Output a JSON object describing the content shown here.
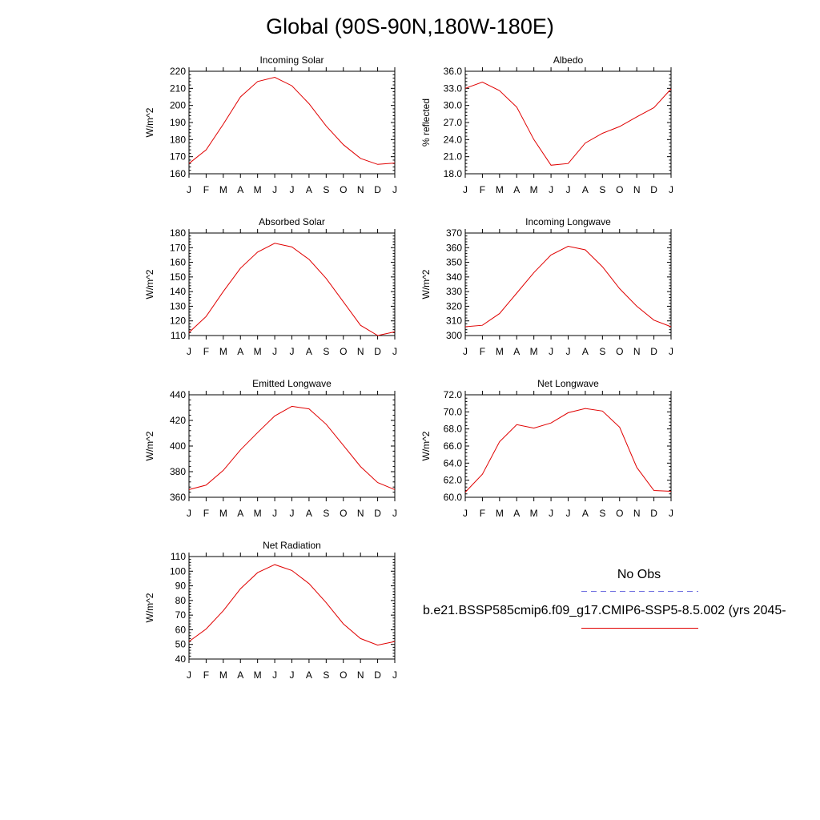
{
  "title": "Global (90S-90N,180W-180E)",
  "legend": {
    "obs_label": "No Obs",
    "obs_color": "#6f6fe0",
    "model_label": "b.e21.BSSP585cmip6.f09_g17.CMIP6-SSP5-8.5.002 (yrs 2045-",
    "model_color": "#e00000"
  },
  "chart_data": [
    {
      "type": "line",
      "title": "Incoming Solar",
      "ylabel": "W/m^2",
      "categories": [
        "J",
        "F",
        "M",
        "A",
        "M",
        "J",
        "J",
        "A",
        "S",
        "O",
        "N",
        "D",
        "J"
      ],
      "ylim": [
        160,
        220
      ],
      "yticks": [
        "160",
        "170",
        "180",
        "190",
        "200",
        "210",
        "220"
      ],
      "series": [
        {
          "values": [
            166,
            174,
            189,
            205,
            214,
            216.5,
            211.5,
            201,
            188,
            177,
            169,
            165.5,
            166.3
          ]
        }
      ]
    },
    {
      "type": "line",
      "title": "Albedo",
      "ylabel": "% reflected",
      "categories": [
        "J",
        "F",
        "M",
        "A",
        "M",
        "J",
        "J",
        "A",
        "S",
        "O",
        "N",
        "D",
        "J"
      ],
      "ylim": [
        18,
        36
      ],
      "yticks": [
        "18.0",
        "21.0",
        "24.0",
        "27.0",
        "30.0",
        "33.0",
        "36.0"
      ],
      "series": [
        {
          "values": [
            33.0,
            34.1,
            32.6,
            29.7,
            24.0,
            19.5,
            19.8,
            23.4,
            25.1,
            26.3,
            28.0,
            29.6,
            32.9
          ]
        }
      ]
    },
    {
      "type": "line",
      "title": "Absorbed Solar",
      "ylabel": "W/m^2",
      "categories": [
        "J",
        "F",
        "M",
        "A",
        "M",
        "J",
        "J",
        "A",
        "S",
        "O",
        "N",
        "D",
        "J"
      ],
      "ylim": [
        110,
        180
      ],
      "yticks": [
        "110",
        "120",
        "130",
        "140",
        "150",
        "160",
        "170",
        "180"
      ],
      "series": [
        {
          "values": [
            112,
            123,
            140,
            156,
            167,
            173,
            170.5,
            162,
            149,
            133,
            117,
            110,
            112.5
          ]
        }
      ]
    },
    {
      "type": "line",
      "title": "Incoming Longwave",
      "ylabel": "W/m^2",
      "categories": [
        "J",
        "F",
        "M",
        "A",
        "M",
        "J",
        "J",
        "A",
        "S",
        "O",
        "N",
        "D",
        "J"
      ],
      "ylim": [
        300,
        370
      ],
      "yticks": [
        "300",
        "310",
        "320",
        "330",
        "340",
        "350",
        "360",
        "370"
      ],
      "series": [
        {
          "values": [
            306,
            307,
            315,
            329,
            343,
            355,
            361,
            358.5,
            347,
            332,
            320,
            310.5,
            306
          ]
        }
      ]
    },
    {
      "type": "line",
      "title": "Emitted Longwave",
      "ylabel": "W/m^2",
      "categories": [
        "J",
        "F",
        "M",
        "A",
        "M",
        "J",
        "J",
        "A",
        "S",
        "O",
        "N",
        "D",
        "J"
      ],
      "ylim": [
        360,
        440
      ],
      "yticks": [
        "360",
        "380",
        "400",
        "420",
        "440"
      ],
      "series": [
        {
          "values": [
            366,
            369.5,
            381,
            397,
            410.5,
            423.5,
            431,
            429,
            417,
            400.5,
            384,
            371.5,
            366
          ]
        }
      ]
    },
    {
      "type": "line",
      "title": "Net Longwave",
      "ylabel": "W/m^2",
      "categories": [
        "J",
        "F",
        "M",
        "A",
        "M",
        "J",
        "J",
        "A",
        "S",
        "O",
        "N",
        "D",
        "J"
      ],
      "ylim": [
        60,
        72
      ],
      "yticks": [
        "60.0",
        "62.0",
        "64.0",
        "66.0",
        "68.0",
        "70.0",
        "72.0"
      ],
      "series": [
        {
          "values": [
            60.6,
            62.7,
            66.5,
            68.5,
            68.1,
            68.7,
            69.9,
            70.4,
            70.1,
            68.2,
            63.5,
            60.8,
            60.7
          ]
        }
      ]
    },
    {
      "type": "line",
      "title": "Net Radiation",
      "ylabel": "W/m^2",
      "categories": [
        "J",
        "F",
        "M",
        "A",
        "M",
        "J",
        "J",
        "A",
        "S",
        "O",
        "N",
        "D",
        "J"
      ],
      "ylim": [
        40,
        110
      ],
      "yticks": [
        "40",
        "50",
        "60",
        "70",
        "80",
        "90",
        "100",
        "110"
      ],
      "series": [
        {
          "values": [
            52,
            60.5,
            73,
            88,
            99,
            104.5,
            100.5,
            91.5,
            78.5,
            64,
            54,
            49.5,
            52
          ]
        }
      ]
    }
  ]
}
